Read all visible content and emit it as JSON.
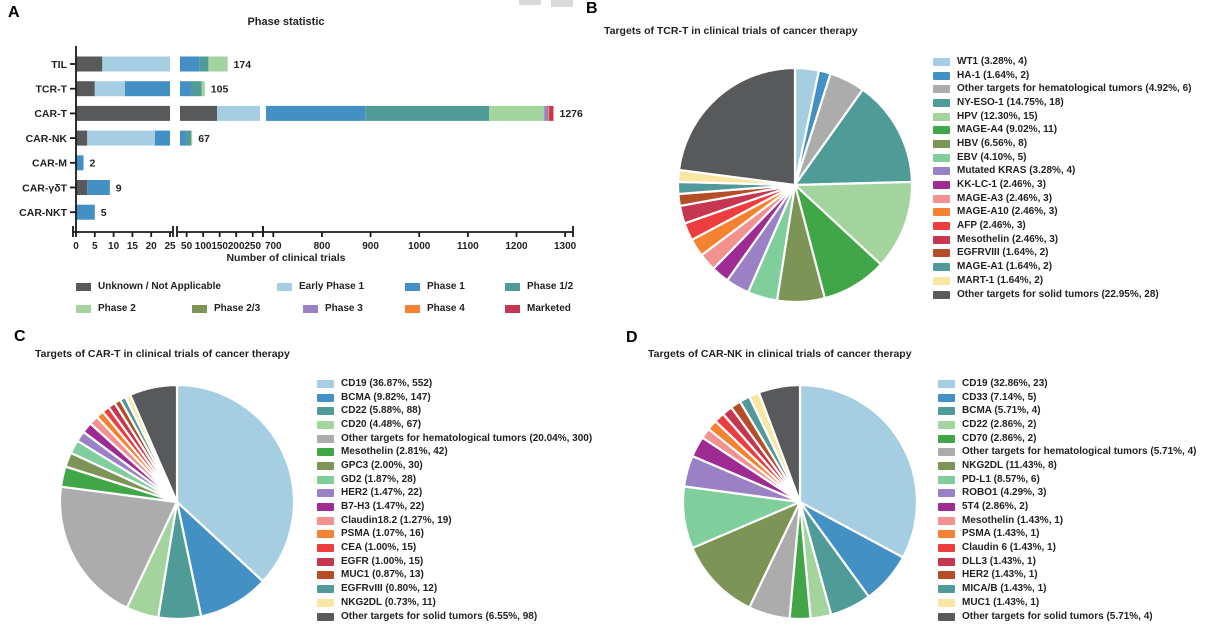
{
  "chart_data": [
    {
      "type": "bar",
      "orientation": "horizontal-stacked",
      "panel_letter": "A",
      "title": "Phase statistic",
      "xlabel": "Number of clinical trials",
      "broken_axis": true,
      "axis_segments": [
        {
          "domain": [
            0,
            25
          ],
          "ticks": [
            0,
            5,
            10,
            15,
            20,
            25
          ]
        },
        {
          "domain": [
            30,
            272
          ],
          "ticks": [
            50,
            100,
            150,
            200,
            250
          ]
        },
        {
          "domain": [
            685,
            1310
          ],
          "ticks": [
            700,
            800,
            900,
            1000,
            1100,
            1200,
            1300
          ]
        }
      ],
      "phases": [
        {
          "label": "Unknown / Not Applicable",
          "color": "#58595B"
        },
        {
          "label": "Early Phase 1",
          "color": "#A6CEE3"
        },
        {
          "label": "Phase 1",
          "color": "#4390C4"
        },
        {
          "label": "Phase 1/2",
          "color": "#4E9B97"
        },
        {
          "label": "Phase 2",
          "color": "#A4D49D"
        },
        {
          "label": "Phase 2/3",
          "color": "#7C9455"
        },
        {
          "label": "Phase 3",
          "color": "#9A80C4"
        },
        {
          "label": "Phase 4",
          "color": "#F58231"
        },
        {
          "label": "Marketed",
          "color": "#C63651"
        }
      ],
      "rows": [
        {
          "category": "TIL",
          "total": 174,
          "values": [
            7,
            23,
            58,
            28,
            57,
            0,
            1,
            0,
            0
          ]
        },
        {
          "category": "TCR-T",
          "total": 105,
          "values": [
            5,
            8,
            50,
            32,
            10,
            0,
            0,
            0,
            0
          ]
        },
        {
          "category": "CAR-T",
          "total": 1276,
          "values": [
            142,
            338,
            409,
            255,
            113,
            0,
            8,
            2,
            9
          ]
        },
        {
          "category": "CAR-NK",
          "total": 67,
          "values": [
            3,
            18,
            27,
            16,
            3,
            0,
            0,
            0,
            0
          ]
        },
        {
          "category": "CAR-M",
          "total": 2,
          "values": [
            0,
            0,
            2,
            0,
            0,
            0,
            0,
            0,
            0
          ]
        },
        {
          "category": "CAR-γδT",
          "total": 9,
          "values": [
            3,
            0,
            6,
            0,
            0,
            0,
            0,
            0,
            0
          ]
        },
        {
          "category": "CAR-NKT",
          "total": 5,
          "values": [
            0,
            0,
            5,
            0,
            0,
            0,
            0,
            0,
            0
          ]
        }
      ]
    },
    {
      "type": "pie",
      "panel_letter": "B",
      "title": "Targets of TCR-T in clinical trials of cancer therapy",
      "slices": [
        {
          "label": "WT1",
          "pct": "3.28",
          "count": 4,
          "color": "#A6CEE3"
        },
        {
          "label": "HA-1",
          "pct": "1.64",
          "count": 2,
          "color": "#4390C4"
        },
        {
          "label": "Other targets for hematological tumors",
          "pct": "4.92",
          "count": 6,
          "color": "#ACACAC"
        },
        {
          "label": "NY-ESO-1",
          "pct": "14.75",
          "count": 18,
          "color": "#4E9B97"
        },
        {
          "label": "HPV",
          "pct": "12.30",
          "count": 15,
          "color": "#A4D49D"
        },
        {
          "label": "MAGE-A4",
          "pct": "9.02",
          "count": 11,
          "color": "#41A648"
        },
        {
          "label": "HBV",
          "pct": "6.56",
          "count": 8,
          "color": "#7C9455"
        },
        {
          "label": "EBV",
          "pct": "4.10",
          "count": 5,
          "color": "#7FCE9B"
        },
        {
          "label": "Mutated KRAS",
          "pct": "3.28",
          "count": 4,
          "color": "#9A80C4"
        },
        {
          "label": "KK-LC-1",
          "pct": "2.46",
          "count": 3,
          "color": "#9E2B92"
        },
        {
          "label": "MAGE-A3",
          "pct": "2.46",
          "count": 3,
          "color": "#F2918D"
        },
        {
          "label": "MAGE-A10",
          "pct": "2.46",
          "count": 3,
          "color": "#F58231"
        },
        {
          "label": "AFP",
          "pct": "2.46",
          "count": 3,
          "color": "#EE3D3F"
        },
        {
          "label": "Mesothelin",
          "pct": "2.46",
          "count": 3,
          "color": "#C63651"
        },
        {
          "label": "EGFRVIII",
          "pct": "1.64",
          "count": 2,
          "color": "#B54D27"
        },
        {
          "label": "MAGE-A1",
          "pct": "1.64",
          "count": 2,
          "color": "#52999B"
        },
        {
          "label": "MART-1",
          "pct": "1.64",
          "count": 2,
          "color": "#FAE6A3"
        },
        {
          "label": "Other targets for solid tumors",
          "pct": "22.95",
          "count": 28,
          "color": "#58595B"
        }
      ]
    },
    {
      "type": "pie",
      "panel_letter": "C",
      "title": "Targets of CAR-T in clinical trials of cancer therapy",
      "slices": [
        {
          "label": "CD19",
          "pct": "36.87",
          "count": 552,
          "color": "#A6CEE3"
        },
        {
          "label": "BCMA",
          "pct": "9.82",
          "count": 147,
          "color": "#4390C4"
        },
        {
          "label": "CD22",
          "pct": "5.88",
          "count": 88,
          "color": "#4E9B97"
        },
        {
          "label": "CD20",
          "pct": "4.48",
          "count": 67,
          "color": "#A4D49D"
        },
        {
          "label": "Other targets for hematological tumors",
          "pct": "20.04",
          "count": 300,
          "color": "#ACACAC"
        },
        {
          "label": "Mesothelin",
          "pct": "2.81",
          "count": 42,
          "color": "#41A648"
        },
        {
          "label": "GPC3",
          "pct": "2.00",
          "count": 30,
          "color": "#7C9455"
        },
        {
          "label": "GD2",
          "pct": "1.87",
          "count": 28,
          "color": "#7FCE9B"
        },
        {
          "label": "HER2",
          "pct": "1.47",
          "count": 22,
          "color": "#9A80C4"
        },
        {
          "label": "B7-H3",
          "pct": "1.47",
          "count": 22,
          "color": "#9E2B92"
        },
        {
          "label": "Claudin18.2",
          "pct": "1.27",
          "count": 19,
          "color": "#F2918D"
        },
        {
          "label": "PSMA",
          "pct": "1.07",
          "count": 16,
          "color": "#F58231"
        },
        {
          "label": "CEA",
          "pct": "1.00",
          "count": 15,
          "color": "#EE3D3F"
        },
        {
          "label": "EGFR",
          "pct": "1.00",
          "count": 15,
          "color": "#C63651"
        },
        {
          "label": "MUC1",
          "pct": "0.87",
          "count": 13,
          "color": "#B54D27"
        },
        {
          "label": "EGFRvIII",
          "pct": "0.80",
          "count": 12,
          "color": "#52999B"
        },
        {
          "label": "NKG2DL",
          "pct": "0.73",
          "count": 11,
          "color": "#FAE6A3"
        },
        {
          "label": "Other targets for solid tumors",
          "pct": "6.55",
          "count": 98,
          "color": "#58595B"
        }
      ]
    },
    {
      "type": "pie",
      "panel_letter": "D",
      "title": "Targets of CAR-NK in clinical trials of cancer therapy",
      "slices": [
        {
          "label": "CD19",
          "pct": "32.86",
          "count": 23,
          "color": "#A6CEE3"
        },
        {
          "label": "CD33",
          "pct": "7.14",
          "count": 5,
          "color": "#4390C4"
        },
        {
          "label": "BCMA",
          "pct": "5.71",
          "count": 4,
          "color": "#4E9B97"
        },
        {
          "label": "CD22",
          "pct": "2.86",
          "count": 2,
          "color": "#A4D49D"
        },
        {
          "label": "CD70",
          "pct": "2.86",
          "count": 2,
          "color": "#41A648"
        },
        {
          "label": "Other targets for hematological tumors",
          "pct": "5.71",
          "count": 4,
          "color": "#ACACAC"
        },
        {
          "label": "NKG2DL",
          "pct": "11.43",
          "count": 8,
          "color": "#7C9455"
        },
        {
          "label": "PD-L1",
          "pct": "8.57",
          "count": 6,
          "color": "#7FCE9B"
        },
        {
          "label": "ROBO1",
          "pct": "4.29",
          "count": 3,
          "color": "#9A80C4"
        },
        {
          "label": "5T4",
          "pct": "2.86",
          "count": 2,
          "color": "#9E2B92"
        },
        {
          "label": "Mesothelin",
          "pct": "1.43",
          "count": 1,
          "color": "#F2918D"
        },
        {
          "label": "PSMA",
          "pct": "1.43",
          "count": 1,
          "color": "#F58231"
        },
        {
          "label": "Claudin 6",
          "pct": "1.43",
          "count": 1,
          "color": "#EE3D3F"
        },
        {
          "label": "DLL3",
          "pct": "1.43",
          "count": 1,
          "color": "#C63651"
        },
        {
          "label": "HER2",
          "pct": "1.43",
          "count": 1,
          "color": "#B54D27"
        },
        {
          "label": "MICA/B",
          "pct": "1.43",
          "count": 1,
          "color": "#52999B"
        },
        {
          "label": "MUC1",
          "pct": "1.43",
          "count": 1,
          "color": "#FAE6A3"
        },
        {
          "label": "Other targets for solid tumors",
          "pct": "5.71",
          "count": 4,
          "color": "#58595B"
        }
      ]
    }
  ]
}
